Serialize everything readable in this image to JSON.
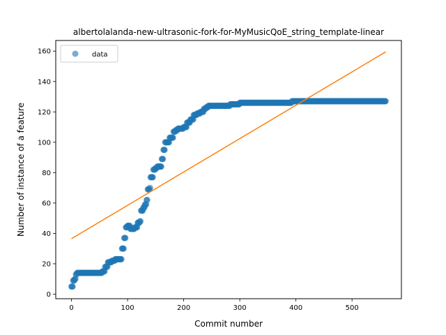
{
  "chart_data": {
    "type": "scatter",
    "title": "albertolalanda-new-ultrasonic-fork-for-MyMusicQoE_string_template-linear",
    "xlabel": "Commit number",
    "ylabel": "Number of instance of a feature",
    "xlim": [
      -28,
      588
    ],
    "ylim": [
      -3,
      167
    ],
    "xticks": [
      0,
      100,
      200,
      300,
      400,
      500
    ],
    "yticks": [
      0,
      20,
      40,
      60,
      80,
      100,
      120,
      140,
      160
    ],
    "grid": false,
    "legend": {
      "placement": "top-left",
      "entries": [
        "data"
      ]
    },
    "series": [
      {
        "name": "data",
        "kind": "scatter",
        "color": "#1f77b4",
        "x_range": [
          0,
          560
        ],
        "step_points": [
          [
            0,
            5
          ],
          [
            3,
            9
          ],
          [
            6,
            10
          ],
          [
            8,
            13
          ],
          [
            10,
            14
          ],
          [
            50,
            14
          ],
          [
            55,
            15
          ],
          [
            60,
            18
          ],
          [
            65,
            21
          ],
          [
            72,
            22
          ],
          [
            78,
            23
          ],
          [
            88,
            23
          ],
          [
            90,
            30
          ],
          [
            94,
            37
          ],
          [
            97,
            44
          ],
          [
            100,
            45
          ],
          [
            105,
            43
          ],
          [
            113,
            44
          ],
          [
            118,
            47
          ],
          [
            122,
            48
          ],
          [
            124,
            55
          ],
          [
            128,
            57
          ],
          [
            131,
            59
          ],
          [
            134,
            62
          ],
          [
            136,
            69
          ],
          [
            140,
            70
          ],
          [
            141,
            77
          ],
          [
            145,
            77
          ],
          [
            146,
            82
          ],
          [
            150,
            83
          ],
          [
            153,
            84
          ],
          [
            158,
            84
          ],
          [
            161,
            89
          ],
          [
            164,
            95
          ],
          [
            167,
            100
          ],
          [
            172,
            100
          ],
          [
            175,
            103
          ],
          [
            180,
            103
          ],
          [
            182,
            107
          ],
          [
            186,
            108
          ],
          [
            190,
            109
          ],
          [
            196,
            109
          ],
          [
            200,
            110
          ],
          [
            205,
            110
          ],
          [
            206,
            113
          ],
          [
            212,
            115
          ],
          [
            218,
            118
          ],
          [
            224,
            119
          ],
          [
            230,
            120
          ],
          [
            236,
            122
          ],
          [
            240,
            123
          ],
          [
            244,
            124
          ],
          [
            280,
            124
          ],
          [
            283,
            125
          ],
          [
            295,
            125
          ],
          [
            300,
            126
          ],
          [
            390,
            126
          ],
          [
            393,
            127
          ],
          [
            560,
            127
          ]
        ]
      },
      {
        "name": "",
        "kind": "line",
        "color": "#ff7f0e",
        "x": [
          0,
          560
        ],
        "y": [
          36.5,
          159.5
        ]
      }
    ]
  }
}
